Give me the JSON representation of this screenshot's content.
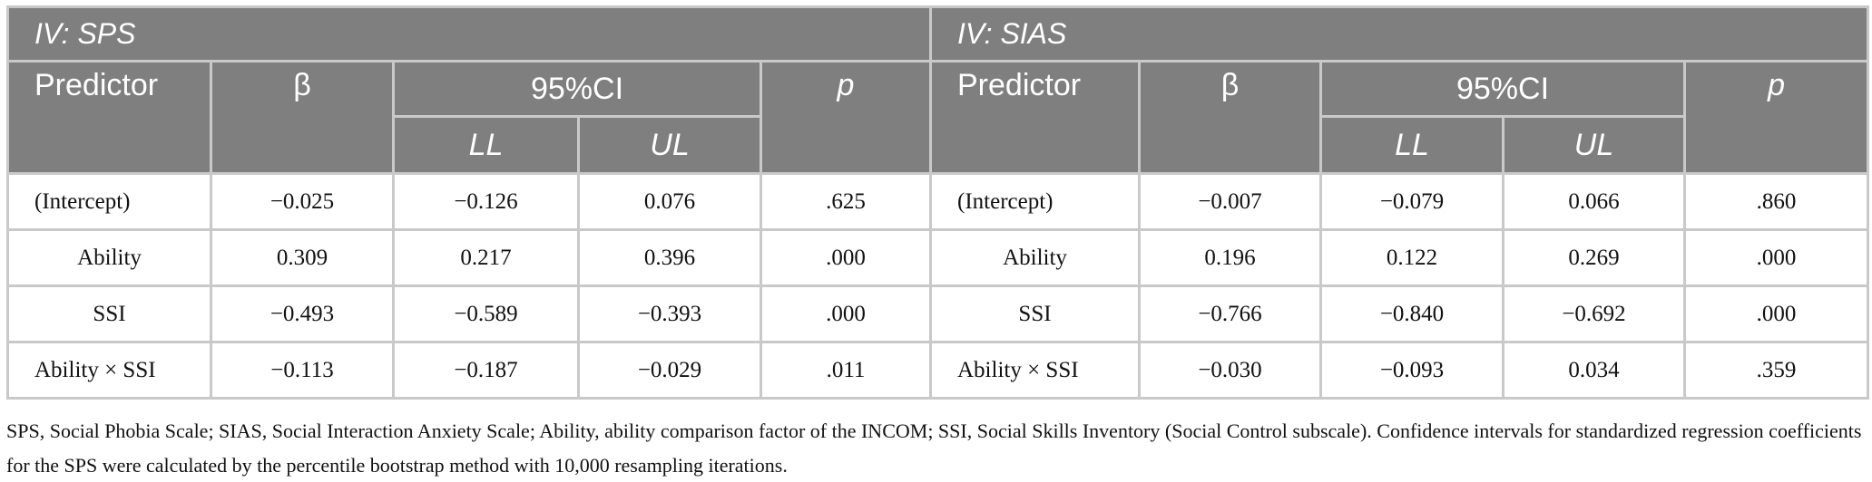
{
  "panels": [
    {
      "title": "IV: SPS",
      "header": {
        "predictor": "Predictor",
        "beta": "β",
        "ci": "95%CI",
        "ll": "LL",
        "ul": "UL",
        "p": "p"
      },
      "rows": [
        [
          "(Intercept)",
          "−0.025",
          "−0.126",
          "0.076",
          ".625"
        ],
        [
          "Ability",
          "0.309",
          "0.217",
          "0.396",
          ".000"
        ],
        [
          "SSI",
          "−0.493",
          "−0.589",
          "−0.393",
          ".000"
        ],
        [
          "Ability × SSI",
          "−0.113",
          "−0.187",
          "−0.029",
          ".011"
        ]
      ]
    },
    {
      "title": "IV: SIAS",
      "header": {
        "predictor": "Predictor",
        "beta": "β",
        "ci": "95%CI",
        "ll": "LL",
        "ul": "UL",
        "p": "p"
      },
      "rows": [
        [
          "(Intercept)",
          "−0.007",
          "−0.079",
          "0.066",
          ".860"
        ],
        [
          "Ability",
          "0.196",
          "0.122",
          "0.269",
          ".000"
        ],
        [
          "SSI",
          "−0.766",
          "−0.840",
          "−0.692",
          ".000"
        ],
        [
          "Ability × SSI",
          "−0.030",
          "−0.093",
          "0.034",
          ".359"
        ]
      ]
    }
  ],
  "footnote": "SPS, Social Phobia Scale; SIAS, Social Interaction Anxiety Scale; Ability, ability comparison factor of the INCOM; SSI, Social Skills Inventory (Social Control subscale). Confidence intervals for standardized regression coefficients for the SPS were calculated by the percentile bootstrap method with 10,000 resampling iterations."
}
